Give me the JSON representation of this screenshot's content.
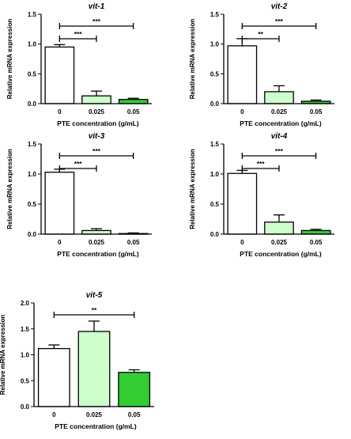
{
  "colors": {
    "control": "#ffffff",
    "low_dose": "#ccffcc",
    "high_dose": "#33cc33",
    "stroke": "#000000"
  },
  "chart_data": [
    {
      "type": "bar",
      "title": "vit-1",
      "xlabel": "PTE concentration (g/mL)",
      "ylabel": "Relative mRNA expression",
      "categories": [
        "0",
        "0.025",
        "0.05"
      ],
      "values": [
        0.95,
        0.13,
        0.07
      ],
      "errors": [
        0.04,
        0.08,
        0.02
      ],
      "ylim": [
        0,
        1.5
      ],
      "yticks": [
        "0.0",
        "0.5",
        "1.0",
        "1.5"
      ],
      "significance": [
        {
          "from": "0",
          "to": "0.025",
          "label": "***"
        },
        {
          "from": "0",
          "to": "0.05",
          "label": "***"
        }
      ]
    },
    {
      "type": "bar",
      "title": "vit-2",
      "xlabel": "PTE concentration (g/mL)",
      "ylabel": "Relative mRNA expression",
      "categories": [
        "0",
        "0.025",
        "0.05"
      ],
      "values": [
        0.97,
        0.2,
        0.04
      ],
      "errors": [
        0.12,
        0.1,
        0.02
      ],
      "ylim": [
        0,
        1.5
      ],
      "yticks": [
        "0.0",
        "0.5",
        "1.0",
        "1.5"
      ],
      "significance": [
        {
          "from": "0",
          "to": "0.025",
          "label": "**"
        },
        {
          "from": "0",
          "to": "0.05",
          "label": "***"
        }
      ]
    },
    {
      "type": "bar",
      "title": "vit-3",
      "xlabel": "PTE concentration (g/mL)",
      "ylabel": "Relative mRNA expression",
      "categories": [
        "0",
        "0.025",
        "0.05"
      ],
      "values": [
        1.03,
        0.06,
        0.01
      ],
      "errors": [
        0.05,
        0.03,
        0.01
      ],
      "ylim": [
        0,
        1.5
      ],
      "yticks": [
        "0.0",
        "0.5",
        "1.0",
        "1.5"
      ],
      "significance": [
        {
          "from": "0",
          "to": "0.025",
          "label": "***"
        },
        {
          "from": "0",
          "to": "0.05",
          "label": "***"
        }
      ]
    },
    {
      "type": "bar",
      "title": "vit-4",
      "xlabel": "PTE concentration (g/mL)",
      "ylabel": "Relative mRNA expression",
      "categories": [
        "0",
        "0.025",
        "0.05"
      ],
      "values": [
        1.01,
        0.2,
        0.06
      ],
      "errors": [
        0.05,
        0.12,
        0.02
      ],
      "ylim": [
        0,
        1.5
      ],
      "yticks": [
        "0.0",
        "0.5",
        "1.0",
        "1.5"
      ],
      "significance": [
        {
          "from": "0",
          "to": "0.025",
          "label": "***"
        },
        {
          "from": "0",
          "to": "0.05",
          "label": "***"
        }
      ]
    },
    {
      "type": "bar",
      "title": "vit-5",
      "xlabel": "PTE concentration (g/mL)",
      "ylabel": "Relative mRNA expression",
      "categories": [
        "0",
        "0.025",
        "0.05"
      ],
      "values": [
        1.12,
        1.45,
        0.66
      ],
      "errors": [
        0.07,
        0.2,
        0.05
      ],
      "ylim": [
        0,
        2.0
      ],
      "yticks": [
        "0.0",
        "0.5",
        "1.0",
        "1.5",
        "2.0"
      ],
      "significance": [
        {
          "from": "0",
          "to": "0.05",
          "label": "**"
        }
      ]
    }
  ]
}
